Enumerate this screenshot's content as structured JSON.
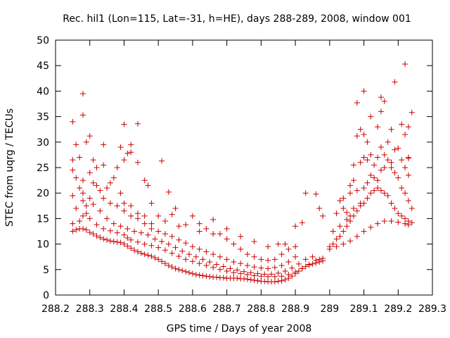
{
  "chart_data": {
    "type": "scatter",
    "title": "Rec. hil1 (Lon=115, Lat=-31, h=HE), days 288-289, 2008, window 001",
    "xlabel": "GPS time / Days of year 2008",
    "ylabel": "STEC from uqrg / TECUs",
    "xlim": [
      288.2,
      289.3
    ],
    "ylim": [
      0,
      50
    ],
    "xticks": [
      "288.2",
      "288.3",
      "288.4",
      "288.5",
      "288.6",
      "288.7",
      "288.8",
      "288.9",
      "289",
      "289.1",
      "289.2",
      "289.3"
    ],
    "yticks": [
      "0",
      "5",
      "10",
      "15",
      "20",
      "25",
      "30",
      "35",
      "40",
      "45",
      "50"
    ],
    "grid": false,
    "marker": "+",
    "color": "#cc0000",
    "points": [
      [
        288.25,
        12.5
      ],
      [
        288.26,
        12.8
      ],
      [
        288.27,
        13.0
      ],
      [
        288.28,
        13.0
      ],
      [
        288.29,
        12.8
      ],
      [
        288.3,
        12.3
      ],
      [
        288.31,
        12.0
      ],
      [
        288.32,
        11.6
      ],
      [
        288.33,
        11.3
      ],
      [
        288.34,
        11.0
      ],
      [
        288.35,
        10.8
      ],
      [
        288.36,
        10.6
      ],
      [
        288.37,
        10.5
      ],
      [
        288.38,
        10.4
      ],
      [
        288.39,
        10.3
      ],
      [
        288.4,
        10.0
      ],
      [
        288.41,
        9.6
      ],
      [
        288.42,
        9.2
      ],
      [
        288.43,
        8.8
      ],
      [
        288.44,
        8.5
      ],
      [
        288.45,
        8.2
      ],
      [
        288.46,
        8.0
      ],
      [
        288.47,
        7.8
      ],
      [
        288.48,
        7.6
      ],
      [
        288.49,
        7.3
      ],
      [
        288.5,
        7.0
      ],
      [
        288.51,
        6.6
      ],
      [
        288.52,
        6.2
      ],
      [
        288.53,
        5.8
      ],
      [
        288.54,
        5.5
      ],
      [
        288.55,
        5.2
      ],
      [
        288.56,
        5.0
      ],
      [
        288.57,
        4.8
      ],
      [
        288.58,
        4.6
      ],
      [
        288.59,
        4.4
      ],
      [
        288.6,
        4.2
      ],
      [
        288.61,
        4.0
      ],
      [
        288.62,
        3.9
      ],
      [
        288.63,
        3.8
      ],
      [
        288.64,
        3.7
      ],
      [
        288.65,
        3.6
      ],
      [
        288.66,
        3.5
      ],
      [
        288.67,
        3.5
      ],
      [
        288.68,
        3.4
      ],
      [
        288.69,
        3.4
      ],
      [
        288.7,
        3.3
      ],
      [
        288.71,
        3.3
      ],
      [
        288.72,
        3.3
      ],
      [
        288.73,
        3.3
      ],
      [
        288.74,
        3.2
      ],
      [
        288.75,
        3.2
      ],
      [
        288.76,
        3.1
      ],
      [
        288.77,
        3.0
      ],
      [
        288.78,
        2.9
      ],
      [
        288.79,
        2.8
      ],
      [
        288.8,
        2.7
      ],
      [
        288.81,
        2.7
      ],
      [
        288.82,
        2.6
      ],
      [
        288.83,
        2.6
      ],
      [
        288.84,
        2.6
      ],
      [
        288.85,
        2.7
      ],
      [
        288.86,
        2.8
      ],
      [
        288.87,
        3.0
      ],
      [
        288.88,
        3.3
      ],
      [
        288.89,
        3.7
      ],
      [
        288.9,
        4.2
      ],
      [
        288.91,
        4.7
      ],
      [
        288.92,
        5.2
      ],
      [
        288.93,
        5.6
      ],
      [
        288.94,
        5.9
      ],
      [
        288.95,
        6.1
      ],
      [
        288.96,
        6.3
      ],
      [
        288.97,
        6.5
      ],
      [
        288.98,
        6.7
      ],
      [
        289.0,
        9.0
      ],
      [
        289.02,
        9.5
      ],
      [
        289.04,
        10.0
      ],
      [
        289.06,
        10.6
      ],
      [
        289.08,
        11.5
      ],
      [
        289.1,
        12.5
      ],
      [
        289.12,
        13.3
      ],
      [
        289.14,
        14.0
      ],
      [
        289.16,
        14.5
      ],
      [
        289.18,
        14.5
      ],
      [
        289.2,
        14.3
      ],
      [
        289.22,
        14.0
      ],
      [
        289.23,
        13.8
      ],
      [
        288.25,
        14.0
      ],
      [
        288.27,
        14.5
      ],
      [
        288.28,
        15.5
      ],
      [
        288.29,
        16.0
      ],
      [
        288.3,
        15.0
      ],
      [
        288.32,
        13.8
      ],
      [
        288.34,
        13.0
      ],
      [
        288.36,
        12.6
      ],
      [
        288.38,
        12.2
      ],
      [
        288.4,
        11.8
      ],
      [
        288.41,
        11.2
      ],
      [
        288.42,
        10.8
      ],
      [
        288.44,
        10.4
      ],
      [
        288.46,
        10.0
      ],
      [
        288.48,
        9.7
      ],
      [
        288.5,
        9.3
      ],
      [
        288.52,
        8.8
      ],
      [
        288.54,
        8.2
      ],
      [
        288.56,
        7.6
      ],
      [
        288.58,
        7.0
      ],
      [
        288.6,
        6.6
      ],
      [
        288.62,
        6.2
      ],
      [
        288.64,
        5.8
      ],
      [
        288.66,
        5.4
      ],
      [
        288.68,
        5.0
      ],
      [
        288.7,
        4.7
      ],
      [
        288.72,
        4.4
      ],
      [
        288.74,
        4.2
      ],
      [
        288.76,
        4.0
      ],
      [
        288.78,
        3.8
      ],
      [
        288.8,
        3.7
      ],
      [
        288.82,
        3.6
      ],
      [
        288.84,
        3.6
      ],
      [
        288.86,
        3.7
      ],
      [
        288.88,
        4.0
      ],
      [
        288.9,
        4.5
      ],
      [
        288.92,
        5.2
      ],
      [
        288.94,
        6.0
      ],
      [
        288.96,
        6.8
      ],
      [
        288.98,
        7.2
      ],
      [
        288.26,
        17.0
      ],
      [
        288.28,
        18.5
      ],
      [
        288.29,
        17.5
      ],
      [
        288.31,
        17.8
      ],
      [
        288.33,
        16.5
      ],
      [
        288.35,
        15.0
      ],
      [
        288.37,
        14.0
      ],
      [
        288.39,
        13.5
      ],
      [
        288.41,
        13.0
      ],
      [
        288.43,
        12.5
      ],
      [
        288.45,
        12.2
      ],
      [
        288.47,
        11.8
      ],
      [
        288.49,
        11.0
      ],
      [
        288.51,
        10.5
      ],
      [
        288.53,
        10.0
      ],
      [
        288.55,
        9.3
      ],
      [
        288.57,
        8.6
      ],
      [
        288.59,
        8.0
      ],
      [
        288.61,
        7.5
      ],
      [
        288.63,
        7.0
      ],
      [
        288.65,
        6.5
      ],
      [
        288.67,
        6.0
      ],
      [
        288.69,
        5.6
      ],
      [
        288.71,
        5.2
      ],
      [
        288.73,
        4.9
      ],
      [
        288.75,
        4.6
      ],
      [
        288.77,
        4.4
      ],
      [
        288.79,
        4.2
      ],
      [
        288.81,
        4.1
      ],
      [
        288.83,
        4.1
      ],
      [
        288.85,
        4.3
      ],
      [
        288.87,
        4.7
      ],
      [
        288.89,
        5.3
      ],
      [
        288.91,
        6.1
      ],
      [
        288.93,
        7.0
      ],
      [
        288.95,
        7.5
      ],
      [
        288.97,
        7.0
      ],
      [
        288.25,
        19.5
      ],
      [
        288.27,
        21.0
      ],
      [
        288.28,
        20.0
      ],
      [
        288.3,
        19.0
      ],
      [
        288.32,
        21.5
      ],
      [
        288.34,
        19.0
      ],
      [
        288.36,
        18.0
      ],
      [
        288.38,
        17.5
      ],
      [
        288.4,
        16.5
      ],
      [
        288.42,
        15.5
      ],
      [
        288.44,
        15.0
      ],
      [
        288.46,
        14.0
      ],
      [
        288.48,
        13.0
      ],
      [
        288.5,
        12.5
      ],
      [
        288.52,
        12.0
      ],
      [
        288.54,
        11.5
      ],
      [
        288.56,
        10.8
      ],
      [
        288.58,
        10.2
      ],
      [
        288.6,
        9.5
      ],
      [
        288.62,
        9.0
      ],
      [
        288.64,
        8.5
      ],
      [
        288.66,
        8.0
      ],
      [
        288.68,
        7.5
      ],
      [
        288.7,
        7.0
      ],
      [
        288.72,
        6.5
      ],
      [
        288.74,
        6.2
      ],
      [
        288.76,
        5.8
      ],
      [
        288.78,
        5.5
      ],
      [
        288.8,
        5.3
      ],
      [
        288.82,
        5.2
      ],
      [
        288.84,
        5.4
      ],
      [
        288.86,
        5.8
      ],
      [
        288.88,
        6.5
      ],
      [
        288.9,
        7.5
      ],
      [
        288.25,
        24.5
      ],
      [
        288.26,
        23.0
      ],
      [
        288.28,
        22.5
      ],
      [
        288.3,
        24.0
      ],
      [
        288.31,
        22.0
      ],
      [
        288.33,
        20.5
      ],
      [
        288.35,
        21.0
      ],
      [
        288.37,
        23.0
      ],
      [
        288.39,
        20.0
      ],
      [
        288.4,
        18.0
      ],
      [
        288.42,
        17.5
      ],
      [
        288.44,
        16.0
      ],
      [
        288.46,
        15.5
      ],
      [
        288.48,
        14.0
      ],
      [
        288.52,
        14.5
      ],
      [
        288.54,
        15.8
      ],
      [
        288.56,
        13.5
      ],
      [
        288.6,
        15.5
      ],
      [
        288.62,
        14.0
      ],
      [
        288.64,
        13.0
      ],
      [
        288.66,
        14.8
      ],
      [
        288.68,
        12.0
      ],
      [
        288.7,
        11.0
      ],
      [
        288.72,
        10.0
      ],
      [
        288.74,
        9.0
      ],
      [
        288.76,
        8.0
      ],
      [
        288.78,
        7.5
      ],
      [
        288.8,
        7.0
      ],
      [
        288.82,
        6.8
      ],
      [
        288.84,
        7.0
      ],
      [
        288.86,
        8.0
      ],
      [
        288.88,
        9.0
      ],
      [
        288.9,
        9.5
      ],
      [
        288.25,
        26.5
      ],
      [
        288.26,
        29.5
      ],
      [
        288.27,
        27.0
      ],
      [
        288.29,
        30.0
      ],
      [
        288.31,
        26.5
      ],
      [
        288.32,
        25.0
      ],
      [
        288.34,
        25.5
      ],
      [
        288.36,
        22.0
      ],
      [
        288.38,
        25.0
      ],
      [
        288.4,
        26.5
      ],
      [
        288.41,
        27.8
      ],
      [
        288.42,
        28.0
      ],
      [
        288.44,
        26.0
      ],
      [
        288.46,
        22.5
      ],
      [
        288.47,
        21.5
      ],
      [
        288.48,
        18.0
      ],
      [
        288.5,
        15.5
      ],
      [
        288.51,
        26.3
      ],
      [
        288.53,
        20.2
      ],
      [
        288.55,
        17.0
      ],
      [
        288.58,
        13.8
      ],
      [
        288.62,
        12.5
      ],
      [
        288.66,
        12.0
      ],
      [
        288.7,
        13.0
      ],
      [
        288.74,
        11.5
      ],
      [
        288.78,
        10.5
      ],
      [
        288.82,
        9.5
      ],
      [
        288.85,
        10.0
      ],
      [
        288.87,
        10.0
      ],
      [
        288.9,
        13.5
      ],
      [
        288.92,
        14.2
      ],
      [
        288.93,
        20.0
      ],
      [
        288.96,
        19.8
      ],
      [
        288.97,
        17.0
      ],
      [
        288.98,
        15.5
      ],
      [
        288.25,
        34.0
      ],
      [
        288.28,
        35.3
      ],
      [
        288.28,
        39.5
      ],
      [
        288.3,
        31.2
      ],
      [
        288.34,
        29.5
      ],
      [
        288.39,
        29.0
      ],
      [
        288.4,
        33.5
      ],
      [
        288.42,
        29.5
      ],
      [
        288.44,
        33.6
      ],
      [
        289.0,
        9.5
      ],
      [
        289.01,
        10.0
      ],
      [
        289.02,
        11.0
      ],
      [
        289.03,
        11.5
      ],
      [
        289.04,
        12.5
      ],
      [
        289.05,
        13.5
      ],
      [
        289.06,
        14.5
      ],
      [
        289.07,
        15.5
      ],
      [
        289.08,
        16.5
      ],
      [
        289.09,
        17.5
      ],
      [
        289.1,
        18.0
      ],
      [
        289.11,
        19.0
      ],
      [
        289.12,
        20.0
      ],
      [
        289.13,
        20.5
      ],
      [
        289.14,
        21.0
      ],
      [
        289.15,
        20.5
      ],
      [
        289.16,
        20.0
      ],
      [
        289.17,
        19.5
      ],
      [
        289.18,
        18.0
      ],
      [
        289.19,
        17.0
      ],
      [
        289.2,
        16.0
      ],
      [
        289.21,
        15.5
      ],
      [
        289.22,
        15.0
      ],
      [
        289.23,
        14.5
      ],
      [
        289.01,
        12.5
      ],
      [
        289.03,
        13.5
      ],
      [
        289.05,
        14.8
      ],
      [
        289.06,
        15.5
      ],
      [
        289.07,
        17.0
      ],
      [
        289.09,
        18.0
      ],
      [
        289.1,
        21.0
      ],
      [
        289.11,
        22.0
      ],
      [
        289.12,
        23.5
      ],
      [
        289.13,
        23.0
      ],
      [
        289.14,
        22.5
      ],
      [
        289.15,
        24.5
      ],
      [
        289.16,
        25.0
      ],
      [
        289.18,
        25.0
      ],
      [
        289.19,
        24.0
      ],
      [
        289.2,
        23.0
      ],
      [
        289.21,
        21.0
      ],
      [
        289.22,
        20.0
      ],
      [
        289.23,
        18.5
      ],
      [
        289.02,
        16.0
      ],
      [
        289.03,
        18.5
      ],
      [
        289.04,
        17.0
      ],
      [
        289.05,
        16.2
      ],
      [
        289.06,
        20.0
      ],
      [
        289.07,
        22.5
      ],
      [
        289.08,
        20.5
      ],
      [
        289.09,
        26.0
      ],
      [
        289.1,
        27.0
      ],
      [
        289.11,
        26.5
      ],
      [
        289.12,
        27.5
      ],
      [
        289.13,
        25.5
      ],
      [
        289.14,
        27.0
      ],
      [
        289.15,
        29.0
      ],
      [
        289.16,
        27.5
      ],
      [
        289.17,
        26.5
      ],
      [
        289.18,
        26.0
      ],
      [
        289.19,
        28.5
      ],
      [
        289.2,
        28.8
      ],
      [
        289.21,
        26.5
      ],
      [
        289.22,
        25.0
      ],
      [
        289.23,
        26.8
      ],
      [
        289.04,
        19.0
      ],
      [
        289.06,
        21.5
      ],
      [
        289.07,
        25.5
      ],
      [
        289.08,
        31.2
      ],
      [
        289.09,
        32.5
      ],
      [
        289.1,
        31.5
      ],
      [
        289.11,
        30.0
      ],
      [
        289.12,
        35.0
      ],
      [
        289.14,
        33.0
      ],
      [
        289.15,
        36.0
      ],
      [
        289.16,
        38.0
      ],
      [
        289.17,
        30.0
      ],
      [
        289.18,
        32.5
      ],
      [
        289.21,
        33.5
      ],
      [
        289.22,
        31.5
      ],
      [
        289.23,
        33.0
      ],
      [
        289.24,
        35.8
      ],
      [
        289.08,
        37.7
      ],
      [
        289.1,
        40.0
      ],
      [
        289.15,
        38.8
      ],
      [
        289.19,
        41.8
      ],
      [
        289.22,
        45.3
      ],
      [
        289.23,
        27.0
      ],
      [
        289.23,
        23.5
      ],
      [
        289.24,
        17.0
      ],
      [
        289.24,
        14.2
      ]
    ]
  }
}
